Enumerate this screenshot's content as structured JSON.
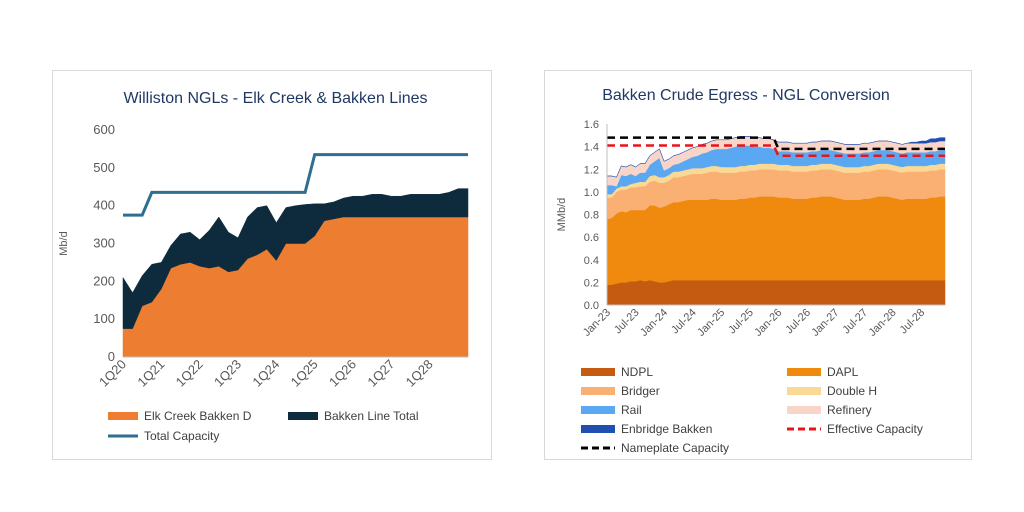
{
  "chart_data": [
    {
      "type": "area",
      "title": "Williston NGLs - Elk Creek & Bakken Lines",
      "ylabel": "Mb/d",
      "ylim": [
        0,
        600
      ],
      "yticks": [
        0,
        100,
        200,
        300,
        400,
        500,
        600
      ],
      "x_tick_labels": [
        "1Q20",
        "1Q21",
        "1Q22",
        "1Q23",
        "1Q24",
        "1Q25",
        "1Q26",
        "1Q27",
        "1Q28"
      ],
      "x_count": 37,
      "stacked": true,
      "series": [
        {
          "name": "Elk Creek Bakken D",
          "kind": "area",
          "color": "#ED7D31",
          "values": [
            75,
            75,
            135,
            145,
            180,
            235,
            245,
            250,
            240,
            235,
            240,
            225,
            230,
            260,
            270,
            285,
            255,
            300,
            300,
            300,
            320,
            360,
            365,
            370,
            370,
            370,
            370,
            370,
            370,
            370,
            370,
            370,
            370,
            370,
            370,
            370,
            370
          ]
        },
        {
          "name": "Bakken Line Total",
          "kind": "area",
          "color": "#0E2B3D",
          "values": [
            135,
            95,
            80,
            100,
            70,
            60,
            80,
            80,
            70,
            100,
            130,
            105,
            85,
            110,
            125,
            115,
            100,
            95,
            100,
            103,
            85,
            45,
            45,
            50,
            55,
            55,
            60,
            60,
            55,
            55,
            60,
            60,
            60,
            60,
            65,
            75,
            75
          ]
        },
        {
          "name": "Total Capacity",
          "kind": "line",
          "color": "#2E6E90",
          "values": [
            375,
            375,
            375,
            435,
            435,
            435,
            435,
            435,
            435,
            435,
            435,
            435,
            435,
            435,
            435,
            435,
            435,
            435,
            435,
            435,
            535,
            535,
            535,
            535,
            535,
            535,
            535,
            535,
            535,
            535,
            535,
            535,
            535,
            535,
            535,
            535,
            535
          ]
        }
      ],
      "legend": "bottom"
    },
    {
      "type": "area",
      "title": "Bakken Crude Egress - NGL Conversion",
      "ylabel": "MMb/d",
      "ylim": [
        0,
        1.6
      ],
      "yticks": [
        0.0,
        0.2,
        0.4,
        0.6,
        0.8,
        1.0,
        1.2,
        1.4,
        1.6
      ],
      "x_tick_labels": [
        "Jan-23",
        "Jul-23",
        "Jan-24",
        "Jul-24",
        "Jan-25",
        "Jul-25",
        "Jan-26",
        "Jul-26",
        "Jan-27",
        "Jul-27",
        "Jan-28",
        "Jul-28"
      ],
      "x_count": 72,
      "stacked": true,
      "series": [
        {
          "name": "NDPL",
          "kind": "area",
          "color": "#C55A11",
          "values": [
            0.18,
            0.18,
            0.19,
            0.2,
            0.2,
            0.21,
            0.21,
            0.22,
            0.21,
            0.22,
            0.21,
            0.2,
            0.2,
            0.21,
            0.22,
            0.22,
            0.22,
            0.22,
            0.22,
            0.22,
            0.22,
            0.22,
            0.22,
            0.22,
            0.22,
            0.22,
            0.22,
            0.22,
            0.22,
            0.22,
            0.22,
            0.22,
            0.22,
            0.22,
            0.22,
            0.22,
            0.22,
            0.22,
            0.22,
            0.22,
            0.22,
            0.22,
            0.22,
            0.22,
            0.22,
            0.22,
            0.22,
            0.22,
            0.22,
            0.22,
            0.22,
            0.22,
            0.22,
            0.22,
            0.22,
            0.22,
            0.22,
            0.22,
            0.22,
            0.22,
            0.22,
            0.22,
            0.22,
            0.22,
            0.22,
            0.22,
            0.22,
            0.22,
            0.22,
            0.22,
            0.22,
            0.22
          ]
        },
        {
          "name": "DAPL",
          "kind": "area",
          "color": "#F08A0E",
          "values": [
            0.58,
            0.59,
            0.62,
            0.63,
            0.62,
            0.63,
            0.63,
            0.62,
            0.63,
            0.66,
            0.67,
            0.66,
            0.67,
            0.68,
            0.69,
            0.69,
            0.7,
            0.71,
            0.71,
            0.71,
            0.71,
            0.71,
            0.72,
            0.72,
            0.71,
            0.71,
            0.71,
            0.71,
            0.72,
            0.72,
            0.73,
            0.73,
            0.74,
            0.74,
            0.74,
            0.74,
            0.73,
            0.73,
            0.73,
            0.72,
            0.72,
            0.72,
            0.72,
            0.73,
            0.73,
            0.74,
            0.74,
            0.74,
            0.73,
            0.72,
            0.71,
            0.71,
            0.71,
            0.71,
            0.72,
            0.72,
            0.73,
            0.74,
            0.74,
            0.74,
            0.73,
            0.72,
            0.71,
            0.72,
            0.72,
            0.72,
            0.72,
            0.72,
            0.73,
            0.73,
            0.74,
            0.74
          ]
        },
        {
          "name": "Bridger",
          "kind": "area",
          "color": "#F9B072",
          "values": [
            0.19,
            0.18,
            0.19,
            0.19,
            0.2,
            0.2,
            0.2,
            0.21,
            0.21,
            0.21,
            0.22,
            0.22,
            0.21,
            0.21,
            0.22,
            0.22,
            0.22,
            0.22,
            0.23,
            0.23,
            0.23,
            0.24,
            0.24,
            0.24,
            0.24,
            0.24,
            0.24,
            0.24,
            0.24,
            0.24,
            0.24,
            0.24,
            0.24,
            0.24,
            0.24,
            0.24,
            0.24,
            0.24,
            0.24,
            0.24,
            0.24,
            0.24,
            0.24,
            0.24,
            0.24,
            0.24,
            0.24,
            0.24,
            0.24,
            0.24,
            0.24,
            0.24,
            0.24,
            0.24,
            0.24,
            0.24,
            0.24,
            0.24,
            0.24,
            0.24,
            0.24,
            0.24,
            0.24,
            0.24,
            0.24,
            0.24,
            0.24,
            0.24,
            0.24,
            0.24,
            0.24,
            0.24
          ]
        },
        {
          "name": "Double H",
          "kind": "area",
          "color": "#FAD996",
          "values": [
            0.03,
            0.03,
            0.03,
            0.03,
            0.03,
            0.03,
            0.04,
            0.04,
            0.04,
            0.05,
            0.05,
            0.05,
            0.05,
            0.05,
            0.05,
            0.05,
            0.05,
            0.05,
            0.05,
            0.05,
            0.05,
            0.05,
            0.05,
            0.05,
            0.05,
            0.05,
            0.05,
            0.05,
            0.05,
            0.05,
            0.05,
            0.05,
            0.05,
            0.05,
            0.05,
            0.05,
            0.05,
            0.05,
            0.05,
            0.05,
            0.05,
            0.05,
            0.05,
            0.05,
            0.05,
            0.05,
            0.05,
            0.05,
            0.05,
            0.05,
            0.05,
            0.05,
            0.05,
            0.05,
            0.05,
            0.05,
            0.05,
            0.05,
            0.05,
            0.05,
            0.05,
            0.05,
            0.05,
            0.05,
            0.05,
            0.05,
            0.05,
            0.05,
            0.05,
            0.05,
            0.05,
            0.05
          ]
        },
        {
          "name": "Rail",
          "kind": "area",
          "color": "#5AA8F2",
          "values": [
            0.08,
            0.08,
            0.02,
            0.1,
            0.09,
            0.09,
            0.06,
            0.08,
            0.08,
            0.1,
            0.12,
            0.17,
            0.06,
            0.06,
            0.06,
            0.07,
            0.08,
            0.09,
            0.1,
            0.11,
            0.13,
            0.13,
            0.14,
            0.15,
            0.16,
            0.16,
            0.17,
            0.18,
            0.18,
            0.18,
            0.17,
            0.16,
            0.15,
            0.14,
            0.14,
            0.13,
            0.12,
            0.12,
            0.12,
            0.12,
            0.12,
            0.12,
            0.12,
            0.12,
            0.12,
            0.12,
            0.12,
            0.12,
            0.12,
            0.12,
            0.12,
            0.12,
            0.12,
            0.12,
            0.12,
            0.12,
            0.12,
            0.12,
            0.12,
            0.12,
            0.12,
            0.12,
            0.12,
            0.12,
            0.12,
            0.12,
            0.12,
            0.12,
            0.12,
            0.12,
            0.12,
            0.12
          ]
        },
        {
          "name": "Refinery",
          "kind": "area",
          "color": "#F8D5C8",
          "values": [
            0.08,
            0.08,
            0.08,
            0.08,
            0.08,
            0.08,
            0.08,
            0.08,
            0.08,
            0.08,
            0.08,
            0.08,
            0.08,
            0.08,
            0.08,
            0.08,
            0.08,
            0.08,
            0.08,
            0.08,
            0.08,
            0.08,
            0.08,
            0.08,
            0.08,
            0.08,
            0.08,
            0.08,
            0.08,
            0.08,
            0.08,
            0.08,
            0.08,
            0.08,
            0.08,
            0.08,
            0.08,
            0.08,
            0.08,
            0.08,
            0.08,
            0.08,
            0.08,
            0.08,
            0.08,
            0.08,
            0.08,
            0.08,
            0.08,
            0.08,
            0.08,
            0.08,
            0.08,
            0.08,
            0.08,
            0.08,
            0.08,
            0.08,
            0.08,
            0.08,
            0.08,
            0.08,
            0.08,
            0.08,
            0.08,
            0.08,
            0.08,
            0.08,
            0.08,
            0.08,
            0.08,
            0.08
          ]
        },
        {
          "name": "Enbridge Bakken",
          "kind": "area",
          "color": "#1F4FB0",
          "values": [
            0,
            0,
            0,
            0,
            0,
            0,
            0,
            0,
            0,
            0,
            0,
            0,
            0,
            0,
            0,
            0,
            0,
            0,
            0,
            0,
            0,
            0,
            0,
            0,
            0,
            0,
            0,
            0,
            0,
            0,
            0,
            0,
            0,
            0,
            0,
            0,
            0,
            0,
            0,
            0,
            0,
            0,
            0,
            0,
            0,
            0,
            0,
            0,
            0,
            0,
            0,
            0,
            0,
            0,
            0,
            0,
            0,
            0,
            0,
            0,
            0,
            0,
            0,
            0,
            0.01,
            0.01,
            0.02,
            0.02,
            0.03,
            0.03,
            0.03,
            0.03
          ]
        },
        {
          "name": "Nameplate Capacity",
          "kind": "line",
          "dash": true,
          "color": "#000000",
          "values": [
            1.48,
            1.48,
            1.48,
            1.48,
            1.48,
            1.48,
            1.48,
            1.48,
            1.48,
            1.48,
            1.48,
            1.48,
            1.48,
            1.48,
            1.48,
            1.48,
            1.48,
            1.48,
            1.48,
            1.48,
            1.48,
            1.48,
            1.48,
            1.48,
            1.48,
            1.48,
            1.48,
            1.48,
            1.48,
            1.48,
            1.48,
            1.48,
            1.48,
            1.48,
            1.48,
            1.48,
            1.38,
            1.38,
            1.38,
            1.38,
            1.38,
            1.38,
            1.38,
            1.38,
            1.38,
            1.38,
            1.38,
            1.38,
            1.38,
            1.38,
            1.38,
            1.38,
            1.38,
            1.38,
            1.38,
            1.38,
            1.38,
            1.38,
            1.38,
            1.38,
            1.38,
            1.38,
            1.38,
            1.38,
            1.38,
            1.38,
            1.38,
            1.38,
            1.38,
            1.38,
            1.38,
            1.38
          ]
        },
        {
          "name": "Effective Capacity",
          "kind": "line",
          "dash": true,
          "color": "#E8141C",
          "values": [
            1.41,
            1.41,
            1.41,
            1.41,
            1.41,
            1.41,
            1.41,
            1.41,
            1.41,
            1.41,
            1.41,
            1.41,
            1.41,
            1.41,
            1.41,
            1.41,
            1.41,
            1.41,
            1.41,
            1.41,
            1.41,
            1.41,
            1.41,
            1.41,
            1.41,
            1.41,
            1.41,
            1.41,
            1.41,
            1.41,
            1.41,
            1.41,
            1.41,
            1.41,
            1.41,
            1.41,
            1.32,
            1.32,
            1.32,
            1.32,
            1.32,
            1.32,
            1.32,
            1.32,
            1.32,
            1.32,
            1.32,
            1.32,
            1.32,
            1.32,
            1.32,
            1.32,
            1.32,
            1.32,
            1.32,
            1.32,
            1.32,
            1.32,
            1.32,
            1.32,
            1.32,
            1.32,
            1.32,
            1.32,
            1.32,
            1.32,
            1.32,
            1.32,
            1.32,
            1.32,
            1.32,
            1.32
          ]
        }
      ],
      "legend": "bottom",
      "legend_order": [
        "NDPL",
        "DAPL",
        "Bridger",
        "Double H",
        "Rail",
        "Refinery",
        "Enbridge Bakken",
        "Effective Capacity",
        "Nameplate Capacity"
      ]
    }
  ]
}
